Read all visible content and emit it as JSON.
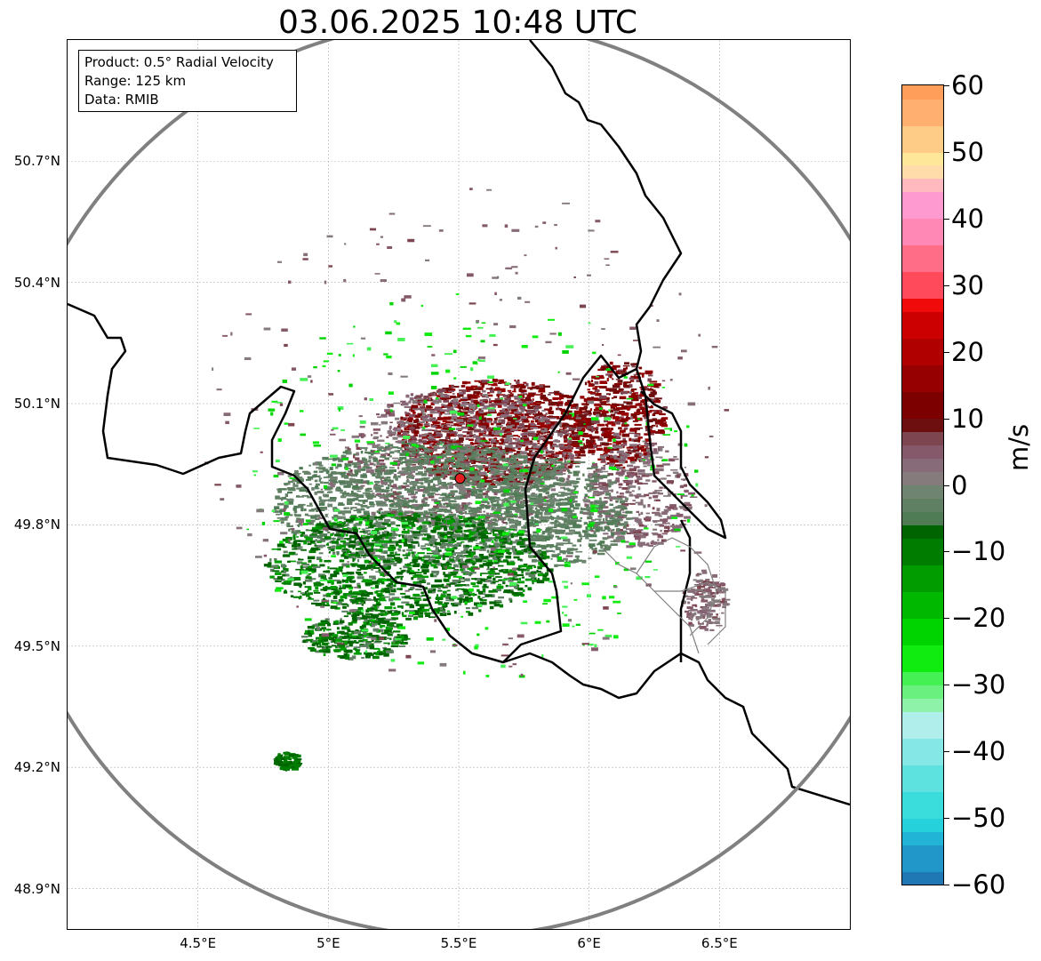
{
  "title": "03.06.2025 10:48 UTC",
  "info": {
    "product": "Product: 0.5° Radial Velocity",
    "range": "Range: 125 km",
    "source": "Data: RMIB"
  },
  "axes": {
    "lat_labels": [
      "50.7°N",
      "50.4°N",
      "50.1°N",
      "49.8°N",
      "49.5°N",
      "49.2°N",
      "48.9°N"
    ],
    "lat_values": [
      50.7,
      50.4,
      50.1,
      49.8,
      49.5,
      49.2,
      48.9
    ],
    "lon_labels": [
      "4.5°E",
      "5°E",
      "5.5°E",
      "6°E",
      "6.5°E"
    ],
    "lon_values": [
      4.5,
      5.0,
      5.5,
      6.0,
      6.5
    ],
    "lon_range": [
      4.0,
      7.0
    ],
    "lat_range": [
      48.8,
      51.0
    ]
  },
  "radar": {
    "site_lon": 5.505,
    "site_lat": 49.915,
    "range_km": 125,
    "site_color": "#e32020",
    "range_ring_color": "#808080"
  },
  "colorbar": {
    "unit": "m/s",
    "min": -60,
    "max": 60,
    "tick_labels": [
      "60",
      "50",
      "40",
      "30",
      "20",
      "10",
      "0",
      "−10",
      "−20",
      "−30",
      "−40",
      "−50",
      "−60"
    ],
    "tick_values": [
      60,
      50,
      40,
      30,
      20,
      10,
      0,
      -10,
      -20,
      -30,
      -40,
      -50,
      -60
    ],
    "bins": [
      {
        "from": -60,
        "to": -58,
        "color": "#1f77b4"
      },
      {
        "from": -58,
        "to": -54,
        "color": "#2196c8"
      },
      {
        "from": -54,
        "to": -52,
        "color": "#22b4d6"
      },
      {
        "from": -52,
        "to": -50,
        "color": "#25d2dc"
      },
      {
        "from": -50,
        "to": -46,
        "color": "#3adcdc"
      },
      {
        "from": -46,
        "to": -42,
        "color": "#5ee2e0"
      },
      {
        "from": -42,
        "to": -38,
        "color": "#86e8e6"
      },
      {
        "from": -38,
        "to": -34,
        "color": "#b0eeec"
      },
      {
        "from": -34,
        "to": -32,
        "color": "#8ef2a8"
      },
      {
        "from": -32,
        "to": -30,
        "color": "#6af07e"
      },
      {
        "from": -30,
        "to": -28,
        "color": "#44f054"
      },
      {
        "from": -28,
        "to": -24,
        "color": "#10ec10"
      },
      {
        "from": -24,
        "to": -20,
        "color": "#00d400"
      },
      {
        "from": -20,
        "to": -16,
        "color": "#00b800"
      },
      {
        "from": -16,
        "to": -12,
        "color": "#009c00"
      },
      {
        "from": -12,
        "to": -8,
        "color": "#007d00"
      },
      {
        "from": -8,
        "to": -6,
        "color": "#006400"
      },
      {
        "from": -6,
        "to": -4,
        "color": "#4f7b55"
      },
      {
        "from": -4,
        "to": -2,
        "color": "#5f8063"
      },
      {
        "from": -2,
        "to": 0,
        "color": "#6f8571"
      },
      {
        "from": 0,
        "to": 2,
        "color": "#857b7d"
      },
      {
        "from": 2,
        "to": 4,
        "color": "#886b78"
      },
      {
        "from": 4,
        "to": 6,
        "color": "#85586a"
      },
      {
        "from": 6,
        "to": 8,
        "color": "#7c4550"
      },
      {
        "from": 8,
        "to": 10,
        "color": "#6e0f0f"
      },
      {
        "from": 10,
        "to": 14,
        "color": "#7d0000"
      },
      {
        "from": 14,
        "to": 18,
        "color": "#960000"
      },
      {
        "from": 18,
        "to": 22,
        "color": "#b00000"
      },
      {
        "from": 22,
        "to": 26,
        "color": "#cc0000"
      },
      {
        "from": 26,
        "to": 28,
        "color": "#f00a0a"
      },
      {
        "from": 28,
        "to": 32,
        "color": "#ff4a5c"
      },
      {
        "from": 32,
        "to": 36,
        "color": "#ff6e86"
      },
      {
        "from": 36,
        "to": 40,
        "color": "#ff88b4"
      },
      {
        "from": 40,
        "to": 44,
        "color": "#ff9ad0"
      },
      {
        "from": 44,
        "to": 46,
        "color": "#ffbac0"
      },
      {
        "from": 46,
        "to": 48,
        "color": "#ffdcaa"
      },
      {
        "from": 48,
        "to": 50,
        "color": "#ffe79a"
      },
      {
        "from": 50,
        "to": 54,
        "color": "#ffcc88"
      },
      {
        "from": 54,
        "to": 58,
        "color": "#ffb070"
      },
      {
        "from": 58,
        "to": 60,
        "color": "#ff9e5a"
      }
    ]
  },
  "colors": {
    "border": "#000000",
    "province_border": "#808080",
    "grid": "#b5b5b5",
    "outbound_dark": "#7a0000",
    "inbound_dark": "#006400",
    "near_zero_green": "#607f62",
    "near_zero_pink": "#87707a"
  }
}
